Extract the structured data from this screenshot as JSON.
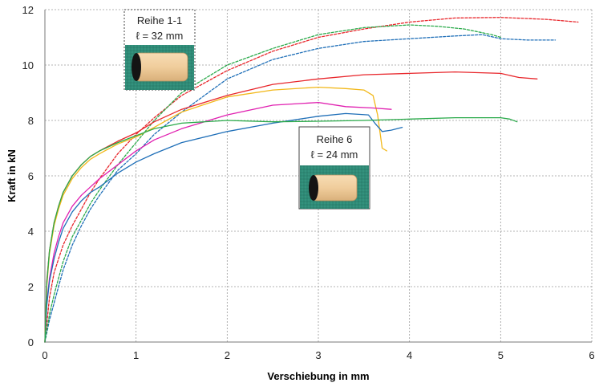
{
  "chart_data": {
    "type": "line",
    "xlabel": "Verschiebung in mm",
    "ylabel": "Kraft in kN",
    "xlim": [
      0,
      6
    ],
    "ylim": [
      0,
      12
    ],
    "xticks": [
      "0",
      "1",
      "2",
      "3",
      "4",
      "5",
      "6"
    ],
    "yticks": [
      "0",
      "2",
      "4",
      "6",
      "8",
      "10",
      "12"
    ],
    "grid": true,
    "annotations": [
      {
        "group": "Reihe 1-1",
        "line1": "Reihe 1-1",
        "line2": "ℓ = 32 mm",
        "image": "light wooden dowel on green background",
        "border": "dotted",
        "anchor_x": 1.0,
        "anchor_y": 8.3
      },
      {
        "group": "Reihe 6",
        "line1": "Reihe 6",
        "line2": "ℓ = 24 mm",
        "image": "short wooden dowel on green background",
        "border": "solid",
        "anchor_x": 3.65,
        "anchor_y": 7.8
      }
    ],
    "series": [
      {
        "color": "#e8262b",
        "dash": "dashed",
        "x": [
          0,
          0.05,
          0.1,
          0.15,
          0.2,
          0.3,
          0.4,
          0.5,
          0.6,
          0.8,
          1.0,
          1.2,
          1.5,
          2.0,
          2.5,
          3.0,
          3.5,
          4.0,
          4.5,
          5.0,
          5.5,
          5.85
        ],
        "y": [
          0,
          1.6,
          2.5,
          3.0,
          3.5,
          4.2,
          4.8,
          5.4,
          5.9,
          6.8,
          7.5,
          8.1,
          8.9,
          9.8,
          10.5,
          11.0,
          11.3,
          11.55,
          11.7,
          11.72,
          11.65,
          11.55
        ]
      },
      {
        "color": "#1f6fb8",
        "dash": "dashed",
        "x": [
          0,
          0.05,
          0.1,
          0.15,
          0.2,
          0.3,
          0.4,
          0.5,
          0.6,
          0.8,
          1.0,
          1.2,
          1.5,
          2.0,
          2.5,
          3.0,
          3.5,
          4.0,
          4.5,
          4.8,
          5.0,
          5.3,
          5.6
        ],
        "y": [
          0,
          0.8,
          1.4,
          2.0,
          2.6,
          3.5,
          4.2,
          4.8,
          5.3,
          6.2,
          6.8,
          7.5,
          8.3,
          9.5,
          10.2,
          10.6,
          10.85,
          10.95,
          11.05,
          11.1,
          10.95,
          10.9,
          10.9
        ]
      },
      {
        "color": "#2aaa4a",
        "dash": "dashed",
        "x": [
          0,
          0.05,
          0.1,
          0.15,
          0.2,
          0.3,
          0.4,
          0.5,
          0.6,
          0.8,
          1.0,
          1.2,
          1.5,
          2.0,
          2.5,
          3.0,
          3.5,
          4.0,
          4.3,
          4.6,
          4.9,
          5.0
        ],
        "y": [
          0,
          1.0,
          1.7,
          2.3,
          2.9,
          3.8,
          4.4,
          5.0,
          5.5,
          6.4,
          7.2,
          8.0,
          9.0,
          10.0,
          10.6,
          11.1,
          11.35,
          11.45,
          11.4,
          11.3,
          11.1,
          11.0
        ]
      },
      {
        "color": "#e8262b",
        "dash": "solid",
        "x": [
          0,
          0.02,
          0.05,
          0.1,
          0.15,
          0.2,
          0.3,
          0.4,
          0.5,
          0.6,
          0.8,
          1.0,
          1.2,
          1.5,
          2.0,
          2.5,
          3.0,
          3.5,
          4.0,
          4.5,
          5.0,
          5.2,
          5.4
        ],
        "y": [
          0,
          2.2,
          3.3,
          4.3,
          4.9,
          5.4,
          6.0,
          6.4,
          6.7,
          6.9,
          7.25,
          7.55,
          7.95,
          8.4,
          8.9,
          9.3,
          9.5,
          9.65,
          9.7,
          9.75,
          9.7,
          9.55,
          9.5
        ]
      },
      {
        "color": "#f2b81a",
        "dash": "solid",
        "x": [
          0,
          0.02,
          0.05,
          0.1,
          0.15,
          0.2,
          0.3,
          0.4,
          0.5,
          0.6,
          0.8,
          1.0,
          1.2,
          1.5,
          2.0,
          2.5,
          3.0,
          3.3,
          3.5,
          3.6,
          3.65,
          3.7,
          3.75
        ],
        "y": [
          0,
          2.0,
          3.2,
          4.2,
          4.8,
          5.3,
          5.9,
          6.3,
          6.6,
          6.8,
          7.15,
          7.4,
          7.75,
          8.3,
          8.85,
          9.1,
          9.2,
          9.15,
          9.1,
          8.9,
          8.2,
          7.0,
          6.9
        ]
      },
      {
        "color": "#e01fb0",
        "dash": "solid",
        "x": [
          0,
          0.02,
          0.05,
          0.1,
          0.15,
          0.2,
          0.3,
          0.4,
          0.5,
          0.6,
          0.8,
          1.0,
          1.2,
          1.5,
          2.0,
          2.5,
          3.0,
          3.3,
          3.6,
          3.8
        ],
        "y": [
          0,
          1.4,
          2.3,
          3.2,
          3.8,
          4.3,
          4.9,
          5.3,
          5.6,
          5.9,
          6.4,
          6.9,
          7.3,
          7.7,
          8.2,
          8.55,
          8.65,
          8.5,
          8.45,
          8.4
        ]
      },
      {
        "color": "#1f6fb8",
        "dash": "solid",
        "x": [
          0,
          0.02,
          0.05,
          0.1,
          0.15,
          0.2,
          0.3,
          0.4,
          0.5,
          0.6,
          0.8,
          1.0,
          1.2,
          1.5,
          2.0,
          2.5,
          3.0,
          3.3,
          3.55,
          3.62,
          3.7,
          3.8,
          3.92
        ],
        "y": [
          0,
          1.3,
          2.2,
          3.0,
          3.6,
          4.1,
          4.7,
          5.1,
          5.4,
          5.6,
          6.1,
          6.5,
          6.8,
          7.2,
          7.6,
          7.9,
          8.15,
          8.25,
          8.2,
          7.9,
          7.6,
          7.65,
          7.75
        ]
      },
      {
        "color": "#2aaa4a",
        "dash": "solid",
        "x": [
          0,
          0.02,
          0.05,
          0.1,
          0.15,
          0.2,
          0.3,
          0.4,
          0.5,
          0.6,
          0.8,
          1.0,
          1.2,
          1.5,
          2.0,
          2.5,
          3.0,
          3.5,
          4.0,
          4.5,
          5.0,
          5.1,
          5.18
        ],
        "y": [
          0,
          2.1,
          3.3,
          4.3,
          4.9,
          5.4,
          6.0,
          6.4,
          6.7,
          6.9,
          7.2,
          7.45,
          7.7,
          7.9,
          8.0,
          7.95,
          7.97,
          8.0,
          8.05,
          8.1,
          8.1,
          8.05,
          7.95
        ]
      }
    ]
  }
}
